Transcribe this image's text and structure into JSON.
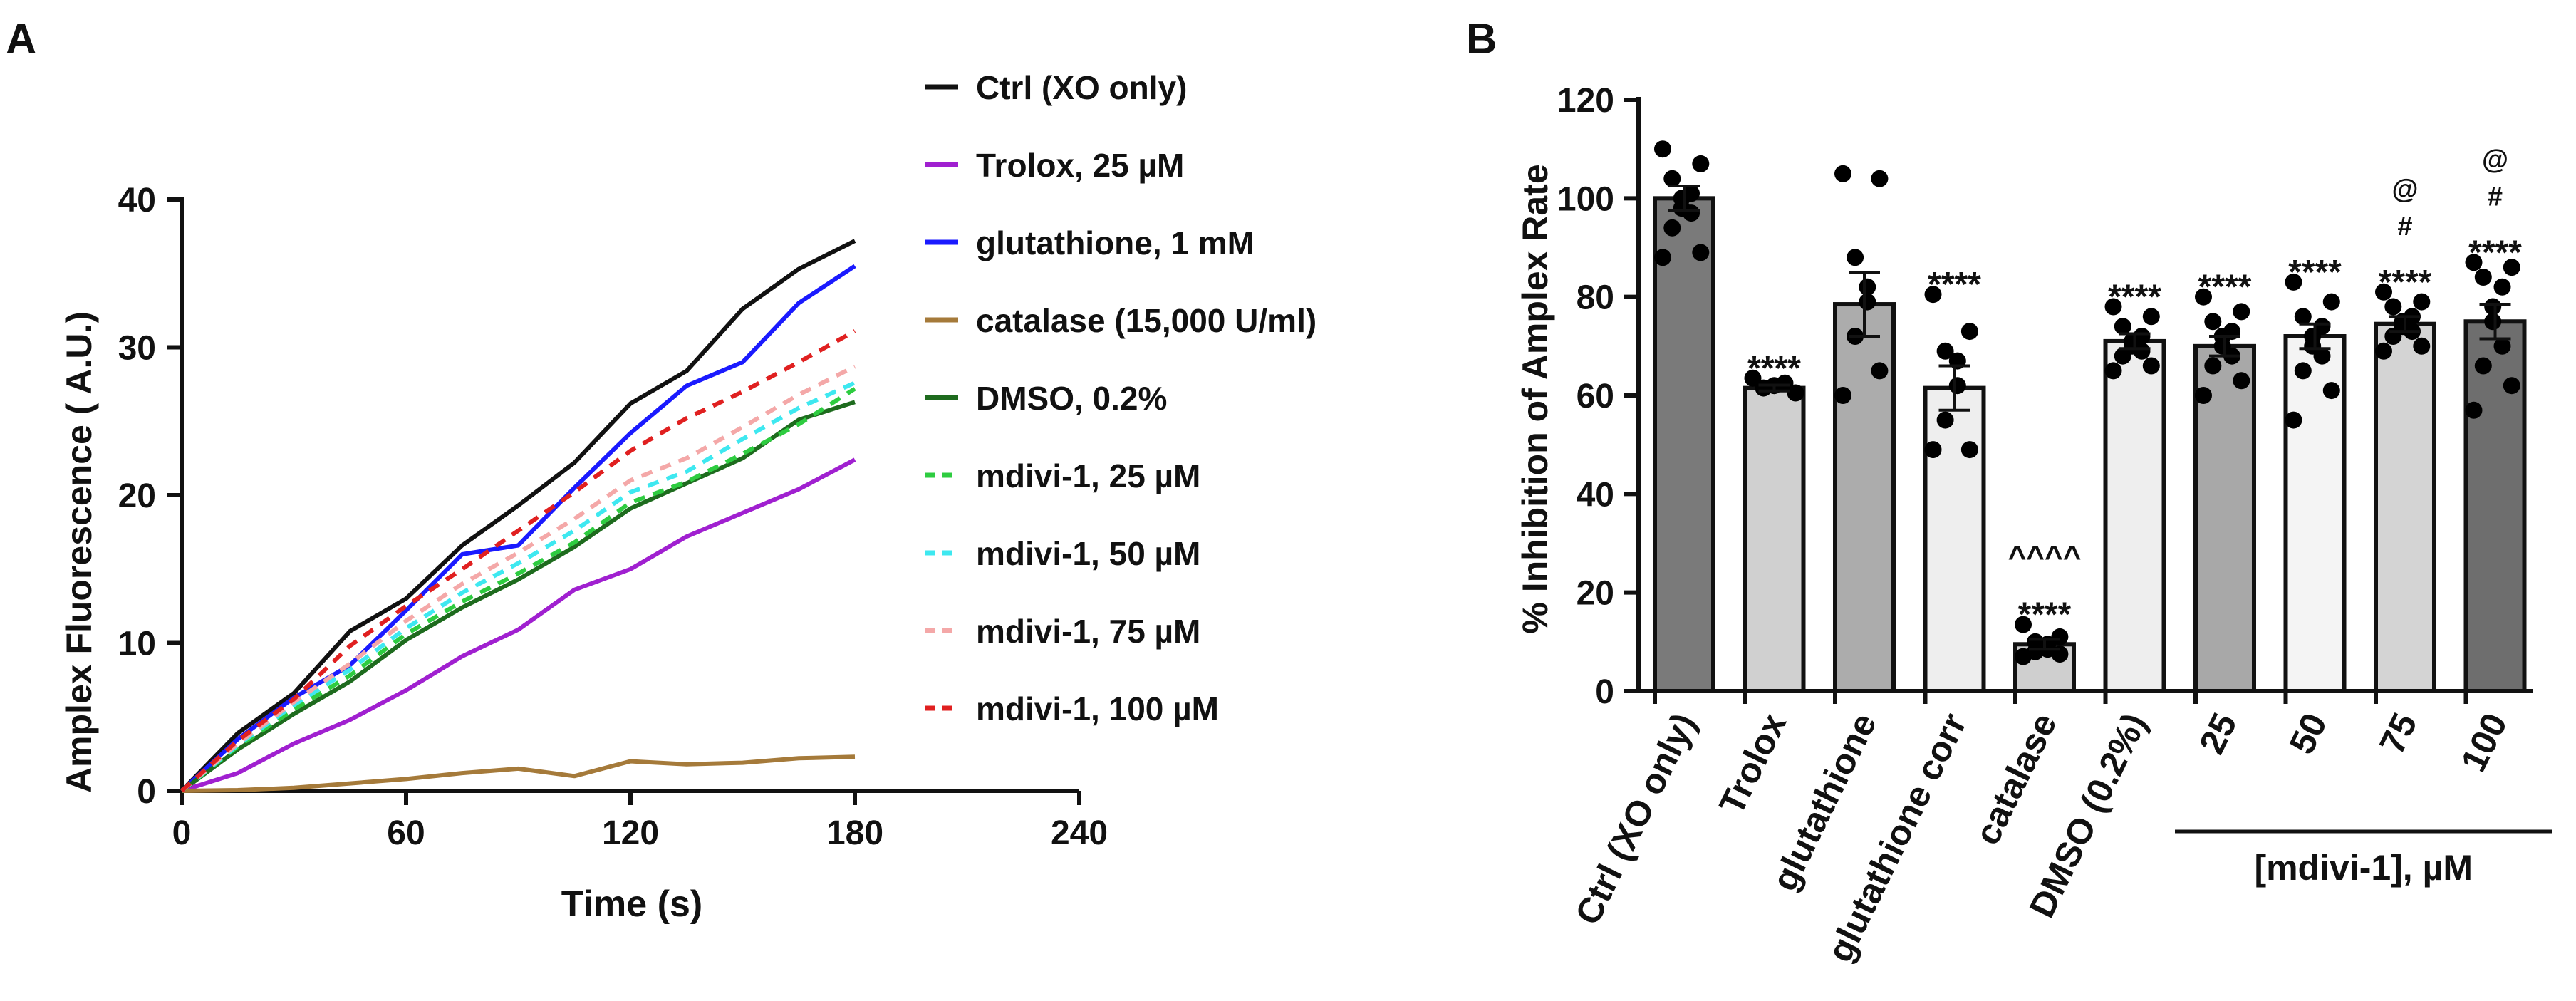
{
  "chart_data": [
    {
      "panel_label": "A",
      "type": "line",
      "title": "",
      "xlabel": "Time (s)",
      "ylabel": "Amplex Fluorescence ( A.U.)",
      "xlim": [
        0,
        240
      ],
      "ylim": [
        0,
        40
      ],
      "xticks": [
        0,
        60,
        120,
        180,
        240
      ],
      "yticks": [
        0,
        10,
        20,
        30,
        40
      ],
      "grid": false,
      "legend": "right",
      "x": [
        0,
        15,
        30,
        45,
        60,
        75,
        90,
        105,
        120,
        135,
        150,
        165,
        180
      ],
      "series": [
        {
          "name": "Ctrl (XO only)",
          "color": "#111111",
          "dash": "solid",
          "values": [
            0,
            3.9,
            6.6,
            10.8,
            13.0,
            16.6,
            19.3,
            22.2,
            26.2,
            28.4,
            32.6,
            35.3,
            37.2
          ]
        },
        {
          "name": "Trolox, 25 µM",
          "color": "#a020d0",
          "dash": "solid",
          "values": [
            0,
            1.2,
            3.2,
            4.8,
            6.8,
            9.1,
            10.9,
            13.6,
            15.0,
            17.2,
            18.8,
            20.4,
            22.4
          ]
        },
        {
          "name": "glutathione, 1 mM",
          "color": "#1a1aff",
          "dash": "solid",
          "values": [
            0,
            3.5,
            6.3,
            8.5,
            12.2,
            16.0,
            16.6,
            20.5,
            24.2,
            27.4,
            29.0,
            33.0,
            35.5
          ]
        },
        {
          "name": "catalase (15,000 U/ml)",
          "color": "#a57a3a",
          "dash": "solid",
          "values": [
            0,
            0.05,
            0.2,
            0.5,
            0.8,
            1.2,
            1.5,
            1.0,
            2.0,
            1.8,
            1.9,
            2.2,
            2.3
          ]
        },
        {
          "name": "DMSO, 0.2%",
          "color": "#1e6b1e",
          "dash": "solid",
          "values": [
            0,
            2.8,
            5.2,
            7.4,
            10.2,
            12.4,
            14.3,
            16.5,
            19.1,
            20.8,
            22.5,
            25.1,
            26.3
          ]
        },
        {
          "name": "mdivi-1, 25 µM",
          "color": "#2ecc40",
          "dash": "dash",
          "values": [
            0,
            3.0,
            5.5,
            7.8,
            10.6,
            12.8,
            14.7,
            16.8,
            19.5,
            20.9,
            22.8,
            24.8,
            27.2
          ]
        },
        {
          "name": "mdivi-1, 50 µM",
          "color": "#3ee8f0",
          "dash": "dash",
          "values": [
            0,
            3.1,
            5.8,
            8.2,
            11.0,
            13.4,
            15.4,
            17.6,
            20.2,
            21.6,
            23.8,
            25.9,
            27.6
          ]
        },
        {
          "name": "mdivi-1, 75 µM",
          "color": "#f4a8a8",
          "dash": "dash",
          "values": [
            0,
            3.2,
            6.0,
            8.6,
            11.5,
            14.0,
            16.1,
            18.4,
            21.0,
            22.5,
            24.6,
            26.8,
            28.7
          ]
        },
        {
          "name": "mdivi-1, 100 µM",
          "color": "#e02020",
          "dash": "dash",
          "values": [
            0,
            3.4,
            6.2,
            9.8,
            12.5,
            15.0,
            17.6,
            20.2,
            23.0,
            25.2,
            27.0,
            29.0,
            31.1
          ]
        }
      ]
    },
    {
      "panel_label": "B",
      "type": "bar",
      "title": "",
      "xlabel": "[mdivi-1], µM",
      "ylabel": "% Inhibition of Amplex Rate",
      "ylim": [
        0,
        120
      ],
      "yticks": [
        0,
        20,
        40,
        60,
        80,
        100,
        120
      ],
      "grid": false,
      "categories": [
        "Ctrl (XO only)",
        "Trolox",
        "glutathione",
        "glutathione corr",
        "catalase",
        "DMSO (0.2%)",
        "25",
        "50",
        "75",
        "100"
      ],
      "values": [
        100,
        61.5,
        78.5,
        61.5,
        9.5,
        71,
        70,
        72,
        74.5,
        75
      ],
      "errors": [
        2.5,
        0.6,
        6.5,
        4.5,
        1.0,
        1.5,
        2.0,
        2.5,
        1.5,
        3.5
      ],
      "bar_colors": [
        "#7a7a7a",
        "#d0d0d0",
        "#acacac",
        "#eeeeee",
        "#cfcfcf",
        "#eeeeee",
        "#a8a8a8",
        "#f4f4f4",
        "#d4d4d4",
        "#6e6e6e"
      ],
      "points": [
        [
          110,
          107,
          104,
          101,
          100,
          98,
          97,
          94,
          89,
          88
        ],
        [
          63.5,
          62.5,
          62,
          61.5,
          60.5
        ],
        [
          105,
          104,
          88,
          82,
          79,
          72,
          65,
          60
        ],
        [
          80.5,
          73,
          69,
          67,
          62,
          55,
          49,
          49
        ],
        [
          13.5,
          11,
          10,
          9.5,
          8.5,
          8,
          7.5,
          7
        ],
        [
          78,
          76,
          74,
          72,
          71,
          70,
          69,
          68,
          66,
          65
        ],
        [
          80,
          77,
          75,
          73,
          72,
          70,
          68,
          66,
          63,
          60
        ],
        [
          83,
          79,
          76,
          74,
          72,
          70,
          68,
          65,
          61,
          55
        ],
        [
          81,
          79,
          78,
          76,
          75,
          74,
          73,
          72,
          70,
          69
        ],
        [
          87,
          86,
          84,
          82,
          78,
          75,
          70,
          66,
          62,
          57
        ]
      ],
      "annotations": [
        [],
        [
          "****"
        ],
        [],
        [
          "****"
        ],
        [
          "****",
          "^^^^"
        ],
        [
          "****"
        ],
        [
          "****"
        ],
        [
          "****"
        ],
        [
          "****",
          "#",
          "@"
        ],
        [
          "****",
          "#",
          "@"
        ]
      ],
      "group_bracket": {
        "label": "[mdivi-1], µM",
        "from": "25",
        "to": "100"
      }
    }
  ]
}
